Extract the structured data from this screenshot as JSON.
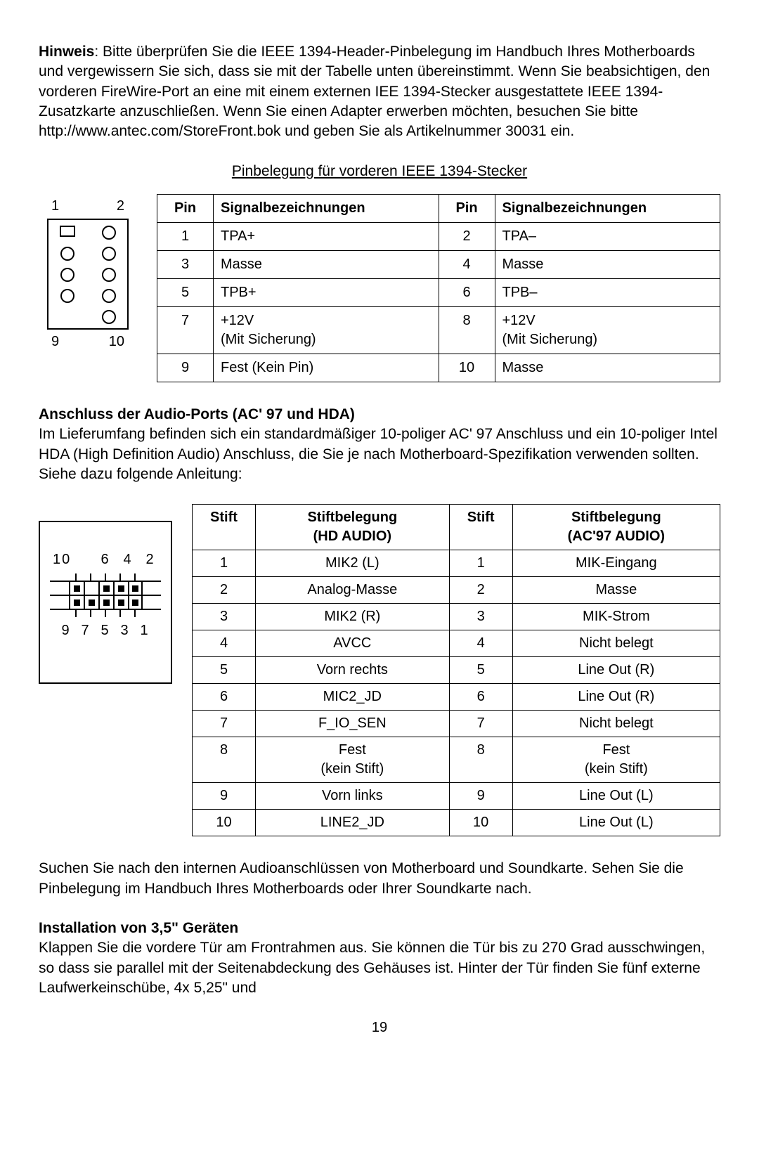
{
  "colors": {
    "text": "#000000",
    "bg": "#ffffff",
    "border": "#000000"
  },
  "para1": {
    "bold": "Hinweis",
    "rest": ": Bitte überprüfen Sie die IEEE 1394-Header-Pinbelegung im Handbuch Ihres Motherboards und vergewissern Sie sich, dass sie mit der Tabelle unten übereinstimmt. Wenn Sie beabsichtigen, den vorderen FireWire-Port an eine mit einem externen IEE 1394-Stecker ausgestattete IEEE 1394-Zusatzkarte anzuschließen. Wenn Sie einen Adapter erwerben möchten, besuchen Sie bitte http://www.antec.com/StoreFront.bok  und geben Sie als Artikelnummer 30031 ein."
  },
  "table1": {
    "caption": "Pinbelegung für vorderen IEEE 1394-Stecker",
    "headers": {
      "c1": "Pin",
      "c2": "Signalbezeichnungen",
      "c3": "Pin",
      "c4": "Signalbezeichnungen"
    },
    "rows": [
      {
        "p1": "1",
        "s1": "TPA+",
        "p2": "2",
        "s2": "TPA–"
      },
      {
        "p1": "3",
        "s1": "Masse",
        "p2": "4",
        "s2": "Masse"
      },
      {
        "p1": "5",
        "s1": "TPB+",
        "p2": "6",
        "s2": "TPB–"
      },
      {
        "p1": "7",
        "s1": "+12V\n(Mit Sicherung)",
        "p2": "8",
        "s2": "+12V\n(Mit Sicherung)"
      },
      {
        "p1": "9",
        "s1": "Fest (Kein Pin)",
        "p2": "10",
        "s2": "Masse"
      }
    ],
    "diagram": {
      "top_left": "1",
      "top_right": "2",
      "bottom_left": "9",
      "bottom_right": "10",
      "pins": [
        [
          "square",
          "circle"
        ],
        [
          "circle",
          "circle"
        ],
        [
          "circle",
          "circle"
        ],
        [
          "circle",
          "circle"
        ],
        [
          "blank",
          "circle"
        ]
      ]
    }
  },
  "section_audio": {
    "heading": "Anschluss der Audio-Ports (AC' 97 und HDA)",
    "text": "Im Lieferumfang befinden sich ein standardmäßiger 10-poliger AC' 97 Anschluss und ein 10-poliger Intel HDA (High Definition Audio) Anschluss, die Sie je nach Motherboard-Spezifikation verwenden sollten. Siehe dazu folgende Anleitung:"
  },
  "table2": {
    "headers": {
      "c1": "Stift",
      "c2": "Stiftbelegung\n(HD AUDIO)",
      "c3": "Stift",
      "c4": "Stiftbelegung\n(AC'97 AUDIO)"
    },
    "rows": [
      {
        "a": "1",
        "b": "MIK2 (L)",
        "c": "1",
        "d": "MIK-Eingang"
      },
      {
        "a": "2",
        "b": "Analog-Masse",
        "c": "2",
        "d": "Masse"
      },
      {
        "a": "3",
        "b": "MIK2 (R)",
        "c": "3",
        "d": "MIK-Strom"
      },
      {
        "a": "4",
        "b": "AVCC",
        "c": "4",
        "d": "Nicht belegt"
      },
      {
        "a": "5",
        "b": "Vorn rechts",
        "c": "5",
        "d": "Line Out (R)"
      },
      {
        "a": "6",
        "b": "MIC2_JD",
        "c": "6",
        "d": "Line Out (R)"
      },
      {
        "a": "7",
        "b": "F_IO_SEN",
        "c": "7",
        "d": "Nicht belegt"
      },
      {
        "a": "8",
        "b": "Fest\n(kein Stift)",
        "c": "8",
        "d": "Fest\n(kein Stift)"
      },
      {
        "a": "9",
        "b": "Vorn links",
        "c": "9",
        "d": "Line Out (L)"
      },
      {
        "a": "10",
        "b": "LINE2_JD",
        "c": "10",
        "d": "Line Out (L)"
      }
    ],
    "diagram": {
      "top_nums": [
        "10",
        "",
        "6",
        "4",
        "2"
      ],
      "bottom_nums": [
        "9",
        "7",
        "5",
        "3",
        "1"
      ],
      "top_row_filled": [
        true,
        false,
        true,
        true,
        true
      ],
      "bottom_row_filled": [
        true,
        true,
        true,
        true,
        true
      ]
    }
  },
  "para_after_audio": "Suchen Sie nach den internen Audioanschlüssen von Motherboard und Soundkarte. Sehen Sie die Pinbelegung im Handbuch Ihres Motherboards oder Ihrer Soundkarte nach.",
  "section_install": {
    "heading": "Installation von 3,5\" Geräten",
    "text": "Klappen Sie die vordere Tür am Frontrahmen aus. Sie können die Tür bis zu 270 Grad ausschwingen, so dass sie parallel mit der Seitenabdeckung des Gehäuses ist. Hinter der Tür finden Sie fünf externe Laufwerkeinschübe, 4x 5,25\" und"
  },
  "page_number": "19"
}
